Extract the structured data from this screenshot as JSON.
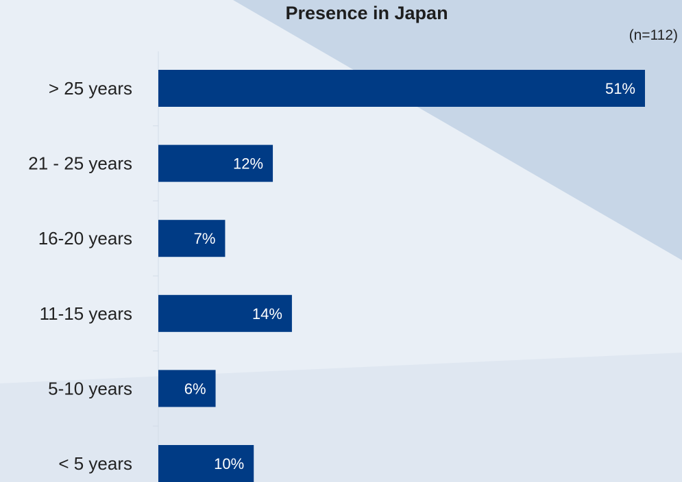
{
  "chart_data": {
    "type": "bar",
    "orientation": "horizontal",
    "title": "Presence in Japan",
    "subtitle": "(n=112)",
    "categories": [
      "> 25 years",
      "21 - 25 years",
      "16-20 years",
      "11-15 years",
      "5-10 years",
      "< 5 years"
    ],
    "values": [
      51,
      12,
      7,
      14,
      6,
      10
    ],
    "value_labels": [
      "51%",
      "12%",
      "7%",
      "14%",
      "6%",
      "10%"
    ],
    "xlim": [
      0,
      51
    ],
    "unit": "%",
    "grid": false,
    "legend": "none",
    "colors": {
      "bar": "#003b85",
      "value_text": "#ffffff",
      "background": "#e7edf5"
    }
  }
}
